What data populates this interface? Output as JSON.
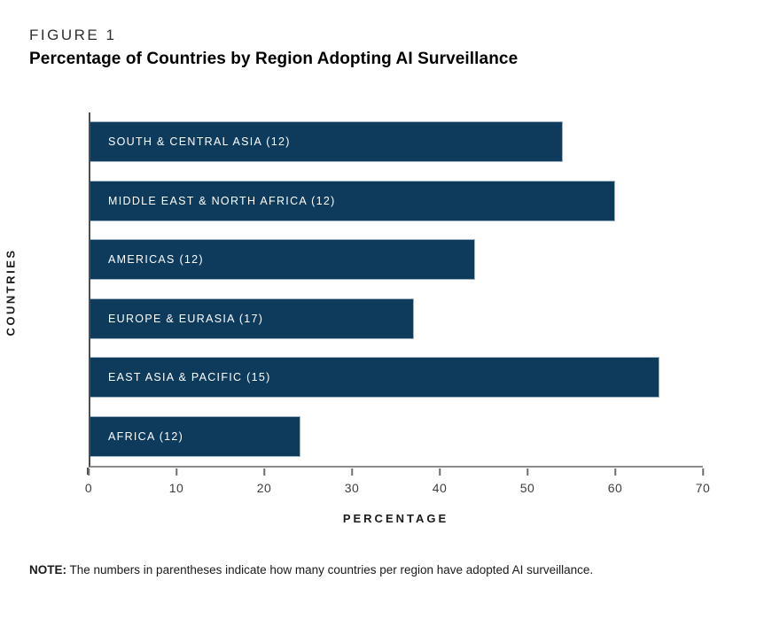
{
  "figure_label": "FIGURE 1",
  "title": "Percentage of Countries by Region Adopting AI Surveillance",
  "chart_data": {
    "type": "bar",
    "orientation": "horizontal",
    "categories": [
      "SOUTH & CENTRAL ASIA (12)",
      "MIDDLE EAST & NORTH AFRICA (12)",
      "AMERICAS (12)",
      "EUROPE & EURASIA (17)",
      "EAST ASIA & PACIFIC (15)",
      "AFRICA (12)"
    ],
    "values": [
      54,
      60,
      44,
      37,
      65,
      24
    ],
    "xlabel": "PERCENTAGE",
    "ylabel": "COUNTRIES",
    "xlim": [
      0,
      70
    ],
    "xticks": [
      0,
      10,
      20,
      30,
      40,
      50,
      60,
      70
    ],
    "grid": false,
    "legend": false,
    "bar_color": "#0e3a5c",
    "bar_border_color": "#9fb5c5",
    "label_color": "#ffffff"
  },
  "note": {
    "label": "NOTE:",
    "text": "The numbers in parentheses indicate how many countries per region have adopted AI surveillance."
  }
}
